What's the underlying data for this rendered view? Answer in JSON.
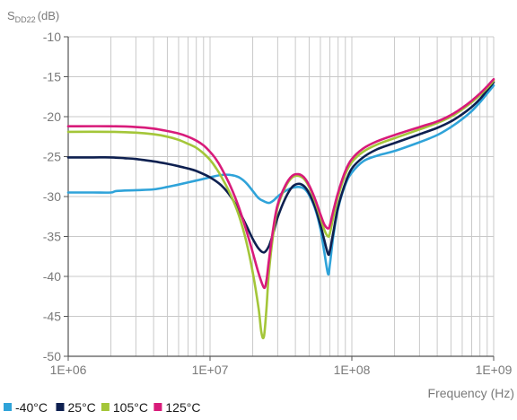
{
  "chart_data": {
    "type": "line",
    "title": "",
    "ylabel": "S",
    "ylabel_sub": "DD22",
    "ylabel_unit": "(dB)",
    "xlabel": "Frequency (Hz)",
    "x_scale": "log",
    "xlim": [
      1000000,
      1000000000
    ],
    "ylim": [
      -50,
      -10
    ],
    "x_ticks": [
      1000000,
      10000000,
      100000000,
      1000000000
    ],
    "x_tick_labels": [
      "1E+06",
      "1E+07",
      "1E+08",
      "1E+09"
    ],
    "y_ticks": [
      -10,
      -15,
      -20,
      -25,
      -30,
      -35,
      -40,
      -45,
      -50
    ],
    "y_tick_labels": [
      "-10",
      "-15",
      "-20",
      "-25",
      "-30",
      "-35",
      "-40",
      "-45",
      "-50"
    ],
    "grid": true,
    "legend_position": "bottom-left",
    "series": [
      {
        "name": "-40°C",
        "color": "#2fa3d9",
        "points": [
          [
            1000000,
            -29.5
          ],
          [
            1500000,
            -29.5
          ],
          [
            2000000,
            -29.5
          ],
          [
            2200000,
            -29.3
          ],
          [
            3000000,
            -29.2
          ],
          [
            4000000,
            -29.1
          ],
          [
            5000000,
            -28.8
          ],
          [
            6000000,
            -28.5
          ],
          [
            8000000,
            -28.0
          ],
          [
            10000000,
            -27.6
          ],
          [
            12000000,
            -27.3
          ],
          [
            14000000,
            -27.3
          ],
          [
            16000000,
            -27.6
          ],
          [
            18000000,
            -28.3
          ],
          [
            20000000,
            -29.3
          ],
          [
            22000000,
            -30.2
          ],
          [
            24000000,
            -30.6
          ],
          [
            26000000,
            -30.8
          ],
          [
            28000000,
            -30.5
          ],
          [
            30000000,
            -30.0
          ],
          [
            34000000,
            -29.3
          ],
          [
            38000000,
            -28.9
          ],
          [
            42000000,
            -28.8
          ],
          [
            46000000,
            -29.0
          ],
          [
            50000000,
            -29.8
          ],
          [
            55000000,
            -31.5
          ],
          [
            60000000,
            -34.0
          ],
          [
            64000000,
            -37.0
          ],
          [
            68000000,
            -39.7
          ],
          [
            70000000,
            -38.5
          ],
          [
            74000000,
            -35.0
          ],
          [
            80000000,
            -31.5
          ],
          [
            90000000,
            -28.5
          ],
          [
            100000000,
            -27.0
          ],
          [
            120000000,
            -25.6
          ],
          [
            150000000,
            -24.9
          ],
          [
            200000000,
            -24.3
          ],
          [
            300000000,
            -23.2
          ],
          [
            400000000,
            -22.3
          ],
          [
            500000000,
            -21.3
          ],
          [
            600000000,
            -20.3
          ],
          [
            700000000,
            -19.3
          ],
          [
            800000000,
            -18.2
          ],
          [
            900000000,
            -17.1
          ],
          [
            1000000000,
            -16.1
          ]
        ]
      },
      {
        "name": "25°C",
        "color": "#0e2050",
        "points": [
          [
            1000000,
            -25.1
          ],
          [
            1500000,
            -25.1
          ],
          [
            2000000,
            -25.1
          ],
          [
            2500000,
            -25.2
          ],
          [
            3000000,
            -25.3
          ],
          [
            4000000,
            -25.6
          ],
          [
            5000000,
            -25.9
          ],
          [
            6000000,
            -26.2
          ],
          [
            7000000,
            -26.5
          ],
          [
            8000000,
            -26.8
          ],
          [
            10000000,
            -27.6
          ],
          [
            12000000,
            -28.6
          ],
          [
            14000000,
            -30.0
          ],
          [
            16000000,
            -31.8
          ],
          [
            18000000,
            -33.6
          ],
          [
            20000000,
            -35.3
          ],
          [
            22000000,
            -36.5
          ],
          [
            24000000,
            -37.0
          ],
          [
            26000000,
            -36.2
          ],
          [
            28000000,
            -34.5
          ],
          [
            30000000,
            -32.6
          ],
          [
            34000000,
            -30.2
          ],
          [
            38000000,
            -28.8
          ],
          [
            42000000,
            -28.4
          ],
          [
            46000000,
            -28.7
          ],
          [
            50000000,
            -29.6
          ],
          [
            55000000,
            -31.3
          ],
          [
            60000000,
            -33.5
          ],
          [
            64000000,
            -35.5
          ],
          [
            68000000,
            -37.2
          ],
          [
            70000000,
            -36.8
          ],
          [
            74000000,
            -34.5
          ],
          [
            80000000,
            -31.3
          ],
          [
            90000000,
            -28.3
          ],
          [
            100000000,
            -26.5
          ],
          [
            120000000,
            -25.1
          ],
          [
            150000000,
            -24.1
          ],
          [
            200000000,
            -23.3
          ],
          [
            300000000,
            -22.2
          ],
          [
            400000000,
            -21.4
          ],
          [
            500000000,
            -20.6
          ],
          [
            600000000,
            -19.7
          ],
          [
            700000000,
            -18.8
          ],
          [
            800000000,
            -17.8
          ],
          [
            900000000,
            -16.7
          ],
          [
            1000000000,
            -15.7
          ]
        ]
      },
      {
        "name": "105°C",
        "color": "#a4c639",
        "points": [
          [
            1000000,
            -21.9
          ],
          [
            2000000,
            -21.9
          ],
          [
            3000000,
            -22.0
          ],
          [
            4000000,
            -22.2
          ],
          [
            5000000,
            -22.5
          ],
          [
            6000000,
            -22.9
          ],
          [
            7000000,
            -23.4
          ],
          [
            8000000,
            -23.9
          ],
          [
            9000000,
            -24.6
          ],
          [
            10000000,
            -25.4
          ],
          [
            11000000,
            -26.4
          ],
          [
            12000000,
            -27.5
          ],
          [
            14000000,
            -29.8
          ],
          [
            16000000,
            -32.4
          ],
          [
            18000000,
            -35.6
          ],
          [
            20000000,
            -39.5
          ],
          [
            22000000,
            -44.0
          ],
          [
            23000000,
            -47.0
          ],
          [
            24000000,
            -47.5
          ],
          [
            25000000,
            -44.0
          ],
          [
            26000000,
            -39.5
          ],
          [
            28000000,
            -34.5
          ],
          [
            30000000,
            -31.3
          ],
          [
            34000000,
            -28.8
          ],
          [
            38000000,
            -27.6
          ],
          [
            42000000,
            -27.4
          ],
          [
            46000000,
            -27.8
          ],
          [
            50000000,
            -28.8
          ],
          [
            55000000,
            -30.6
          ],
          [
            60000000,
            -32.6
          ],
          [
            64000000,
            -34.2
          ],
          [
            68000000,
            -35.0
          ],
          [
            70000000,
            -34.6
          ],
          [
            74000000,
            -32.6
          ],
          [
            80000000,
            -30.0
          ],
          [
            90000000,
            -27.2
          ],
          [
            100000000,
            -25.7
          ],
          [
            120000000,
            -24.4
          ],
          [
            150000000,
            -23.5
          ],
          [
            200000000,
            -22.7
          ],
          [
            300000000,
            -21.6
          ],
          [
            400000000,
            -20.8
          ],
          [
            500000000,
            -20.0
          ],
          [
            600000000,
            -19.1
          ],
          [
            700000000,
            -18.2
          ],
          [
            800000000,
            -17.3
          ],
          [
            900000000,
            -16.4
          ],
          [
            1000000000,
            -15.5
          ]
        ]
      },
      {
        "name": "125°C",
        "color": "#d81b7a",
        "points": [
          [
            1000000,
            -21.2
          ],
          [
            2000000,
            -21.2
          ],
          [
            3000000,
            -21.3
          ],
          [
            4000000,
            -21.5
          ],
          [
            5000000,
            -21.8
          ],
          [
            6000000,
            -22.1
          ],
          [
            7000000,
            -22.5
          ],
          [
            8000000,
            -23.0
          ],
          [
            9000000,
            -23.6
          ],
          [
            10000000,
            -24.4
          ],
          [
            11000000,
            -25.3
          ],
          [
            12000000,
            -26.4
          ],
          [
            14000000,
            -28.8
          ],
          [
            16000000,
            -31.4
          ],
          [
            18000000,
            -34.2
          ],
          [
            20000000,
            -37.0
          ],
          [
            22000000,
            -39.6
          ],
          [
            24000000,
            -41.4
          ],
          [
            25000000,
            -40.5
          ],
          [
            26000000,
            -38.0
          ],
          [
            28000000,
            -33.8
          ],
          [
            30000000,
            -31.0
          ],
          [
            34000000,
            -28.6
          ],
          [
            38000000,
            -27.4
          ],
          [
            42000000,
            -27.2
          ],
          [
            46000000,
            -27.6
          ],
          [
            50000000,
            -28.6
          ],
          [
            55000000,
            -30.3
          ],
          [
            60000000,
            -32.2
          ],
          [
            64000000,
            -33.5
          ],
          [
            68000000,
            -34.0
          ],
          [
            70000000,
            -33.6
          ],
          [
            74000000,
            -31.8
          ],
          [
            80000000,
            -29.5
          ],
          [
            90000000,
            -26.8
          ],
          [
            100000000,
            -25.3
          ],
          [
            120000000,
            -24.0
          ],
          [
            150000000,
            -23.1
          ],
          [
            200000000,
            -22.3
          ],
          [
            300000000,
            -21.3
          ],
          [
            400000000,
            -20.6
          ],
          [
            500000000,
            -19.8
          ],
          [
            600000000,
            -18.9
          ],
          [
            700000000,
            -18.0
          ],
          [
            800000000,
            -17.1
          ],
          [
            900000000,
            -16.2
          ],
          [
            1000000000,
            -15.3
          ]
        ]
      }
    ]
  }
}
